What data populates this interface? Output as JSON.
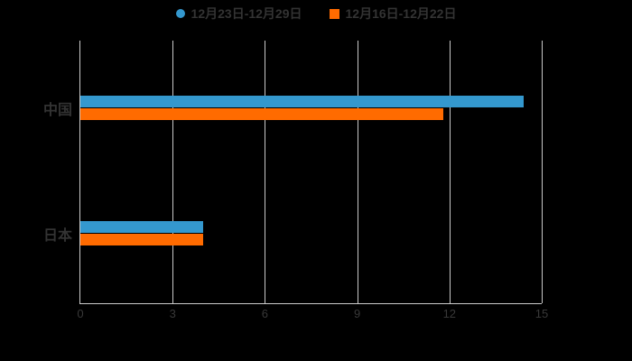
{
  "legend": {
    "items": [
      {
        "label": "12月23日-12月29日",
        "color": "#3498ce",
        "shape": "circle"
      },
      {
        "label": "12月16日-12月22日",
        "color": "#ff6b00",
        "shape": "square"
      }
    ]
  },
  "chart_data": {
    "type": "bar",
    "orientation": "horizontal",
    "title": "",
    "categories": [
      "中国",
      "日本"
    ],
    "series": [
      {
        "name": "12月23日-12月29日",
        "color": "#3498ce",
        "values": [
          14.4,
          4.0
        ]
      },
      {
        "name": "12月16日-12月22日",
        "color": "#ff6b00",
        "values": [
          11.8,
          4.0
        ]
      }
    ],
    "xlim": [
      0,
      15
    ],
    "xticks": [
      0,
      3,
      6,
      9,
      12,
      15
    ],
    "grid": true,
    "legend_position": "top",
    "background_color": "#000000",
    "axis_color": "#cccccc",
    "text_color": "#333333"
  }
}
